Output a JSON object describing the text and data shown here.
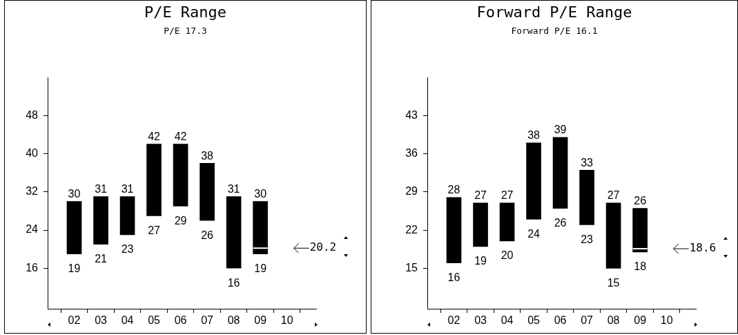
{
  "chart_data": [
    {
      "type": "bar",
      "title": "P/E Range",
      "subtitle": "P/E 17.3",
      "categories": [
        "02",
        "03",
        "04",
        "05",
        "06",
        "07",
        "08",
        "09",
        "10"
      ],
      "values": [
        11,
        10,
        8,
        15,
        13,
        12,
        15,
        11,
        null
      ],
      "base": [
        19,
        21,
        23,
        27,
        29,
        26,
        16,
        19,
        null
      ],
      "color": "#000000",
      "ylim": [
        7.5,
        56
      ],
      "yticks": [
        16,
        24,
        32,
        40,
        48
      ],
      "ref_lines": [
        {
          "axis": "y",
          "value": 20.2,
          "label": "20.2"
        }
      ],
      "annotations": [
        {
          "text": "30",
          "x": "02",
          "y": 30
        },
        {
          "text": "19",
          "x": "02",
          "y": 19
        },
        {
          "text": "31",
          "x": "03",
          "y": 31
        },
        {
          "text": "21",
          "x": "03",
          "y": 21
        },
        {
          "text": "31",
          "x": "04",
          "y": 31
        },
        {
          "text": "23",
          "x": "04",
          "y": 23
        },
        {
          "text": "42",
          "x": "05",
          "y": 42
        },
        {
          "text": "27",
          "x": "05",
          "y": 27
        },
        {
          "text": "42",
          "x": "06",
          "y": 42
        },
        {
          "text": "29",
          "x": "06",
          "y": 29
        },
        {
          "text": "38",
          "x": "07",
          "y": 38
        },
        {
          "text": "26",
          "x": "07",
          "y": 26
        },
        {
          "text": "31",
          "x": "08",
          "y": 31
        },
        {
          "text": "16",
          "x": "08",
          "y": 16
        },
        {
          "text": "30",
          "x": "09",
          "y": 30
        },
        {
          "text": "19",
          "x": "09",
          "y": 19
        }
      ]
    },
    {
      "type": "bar",
      "title": "Forward P/E Range",
      "subtitle": "Forward P/E 16.1",
      "categories": [
        "02",
        "03",
        "04",
        "05",
        "06",
        "07",
        "08",
        "09",
        "10"
      ],
      "values": [
        12,
        8,
        7,
        14,
        13,
        10,
        12,
        8,
        null
      ],
      "base": [
        16,
        19,
        20,
        24,
        26,
        23,
        15,
        18,
        null
      ],
      "color": "#000000",
      "ylim": [
        7.6,
        50
      ],
      "yticks": [
        15,
        22,
        29,
        36,
        43
      ],
      "ref_lines": [
        {
          "axis": "y",
          "value": 18.6,
          "label": "18.6"
        }
      ],
      "annotations": [
        {
          "text": "28",
          "x": "02",
          "y": 28
        },
        {
          "text": "16",
          "x": "02",
          "y": 16
        },
        {
          "text": "27",
          "x": "03",
          "y": 27
        },
        {
          "text": "19",
          "x": "03",
          "y": 19
        },
        {
          "text": "27",
          "x": "04",
          "y": 27
        },
        {
          "text": "20",
          "x": "04",
          "y": 20
        },
        {
          "text": "38",
          "x": "05",
          "y": 38
        },
        {
          "text": "24",
          "x": "05",
          "y": 24
        },
        {
          "text": "39",
          "x": "06",
          "y": 39
        },
        {
          "text": "26",
          "x": "06",
          "y": 26
        },
        {
          "text": "33",
          "x": "07",
          "y": 33
        },
        {
          "text": "23",
          "x": "07",
          "y": 23
        },
        {
          "text": "27",
          "x": "08",
          "y": 27
        },
        {
          "text": "15",
          "x": "08",
          "y": 15
        },
        {
          "text": "26",
          "x": "09",
          "y": 26
        },
        {
          "text": "18",
          "x": "09",
          "y": 18
        }
      ]
    }
  ]
}
